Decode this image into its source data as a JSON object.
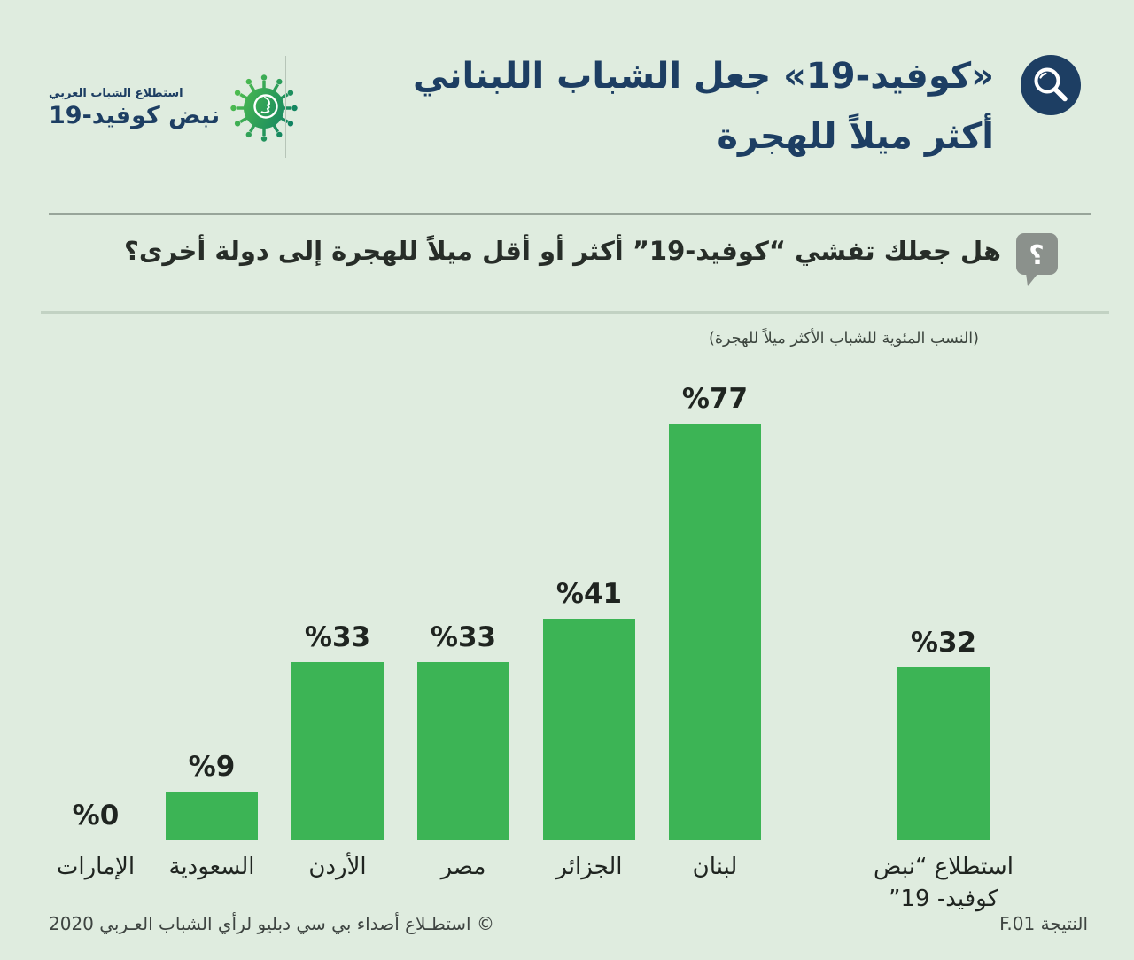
{
  "header": {
    "logo": {
      "line1": "استطلاع الشباب العربي",
      "line2": "نبض كوفيد-19",
      "icon": "virus-icon"
    },
    "title_line1": "«كوفيد-19» جعل الشباب اللبناني",
    "title_line2": "أكثر ميلاً للهجرة",
    "title_icon": "magnifier-icon"
  },
  "question": {
    "icon": "question-bubble-icon",
    "icon_glyph": "؟",
    "text": "هل جعلك تفشي “كوفيد-19” أكثر أو أقل ميلاً للهجرة إلى دولة أخرى؟"
  },
  "chart_data": {
    "type": "bar",
    "subtitle": "(النسب المئوية للشباب الأكثر ميلاً للهجرة)",
    "unit": "%",
    "ylim": [
      0,
      77
    ],
    "grid": false,
    "legend": false,
    "bar_color": "#3cb455",
    "bars": [
      {
        "label": "الإمارات",
        "value": 0,
        "value_label": "%0"
      },
      {
        "label": "السعودية",
        "value": 9,
        "value_label": "%9"
      },
      {
        "label": "الأردن",
        "value": 33,
        "value_label": "%33"
      },
      {
        "label": "مصر",
        "value": 33,
        "value_label": "%33"
      },
      {
        "label": "الجزائر",
        "value": 41,
        "value_label": "%41"
      },
      {
        "label": "لبنان",
        "value": 77,
        "value_label": "%77"
      },
      {
        "label": "استطلاع “نبض كوفيد- 19”",
        "label_line1": "استطلاع “نبض",
        "label_line2": "كوفيد- 19”",
        "value": 32,
        "value_label": "%32"
      }
    ]
  },
  "footer": {
    "copyright": "© استطـلاع أصداء بي سي دبليو لرأي الشباب العـربي 2020",
    "result_label": "النتيجة F.01"
  },
  "colors": {
    "background": "#dfecdf",
    "bar": "#3cb455",
    "navy": "#1d3e63",
    "text_dark": "#1f2420",
    "icon_gray": "#8b918c"
  }
}
